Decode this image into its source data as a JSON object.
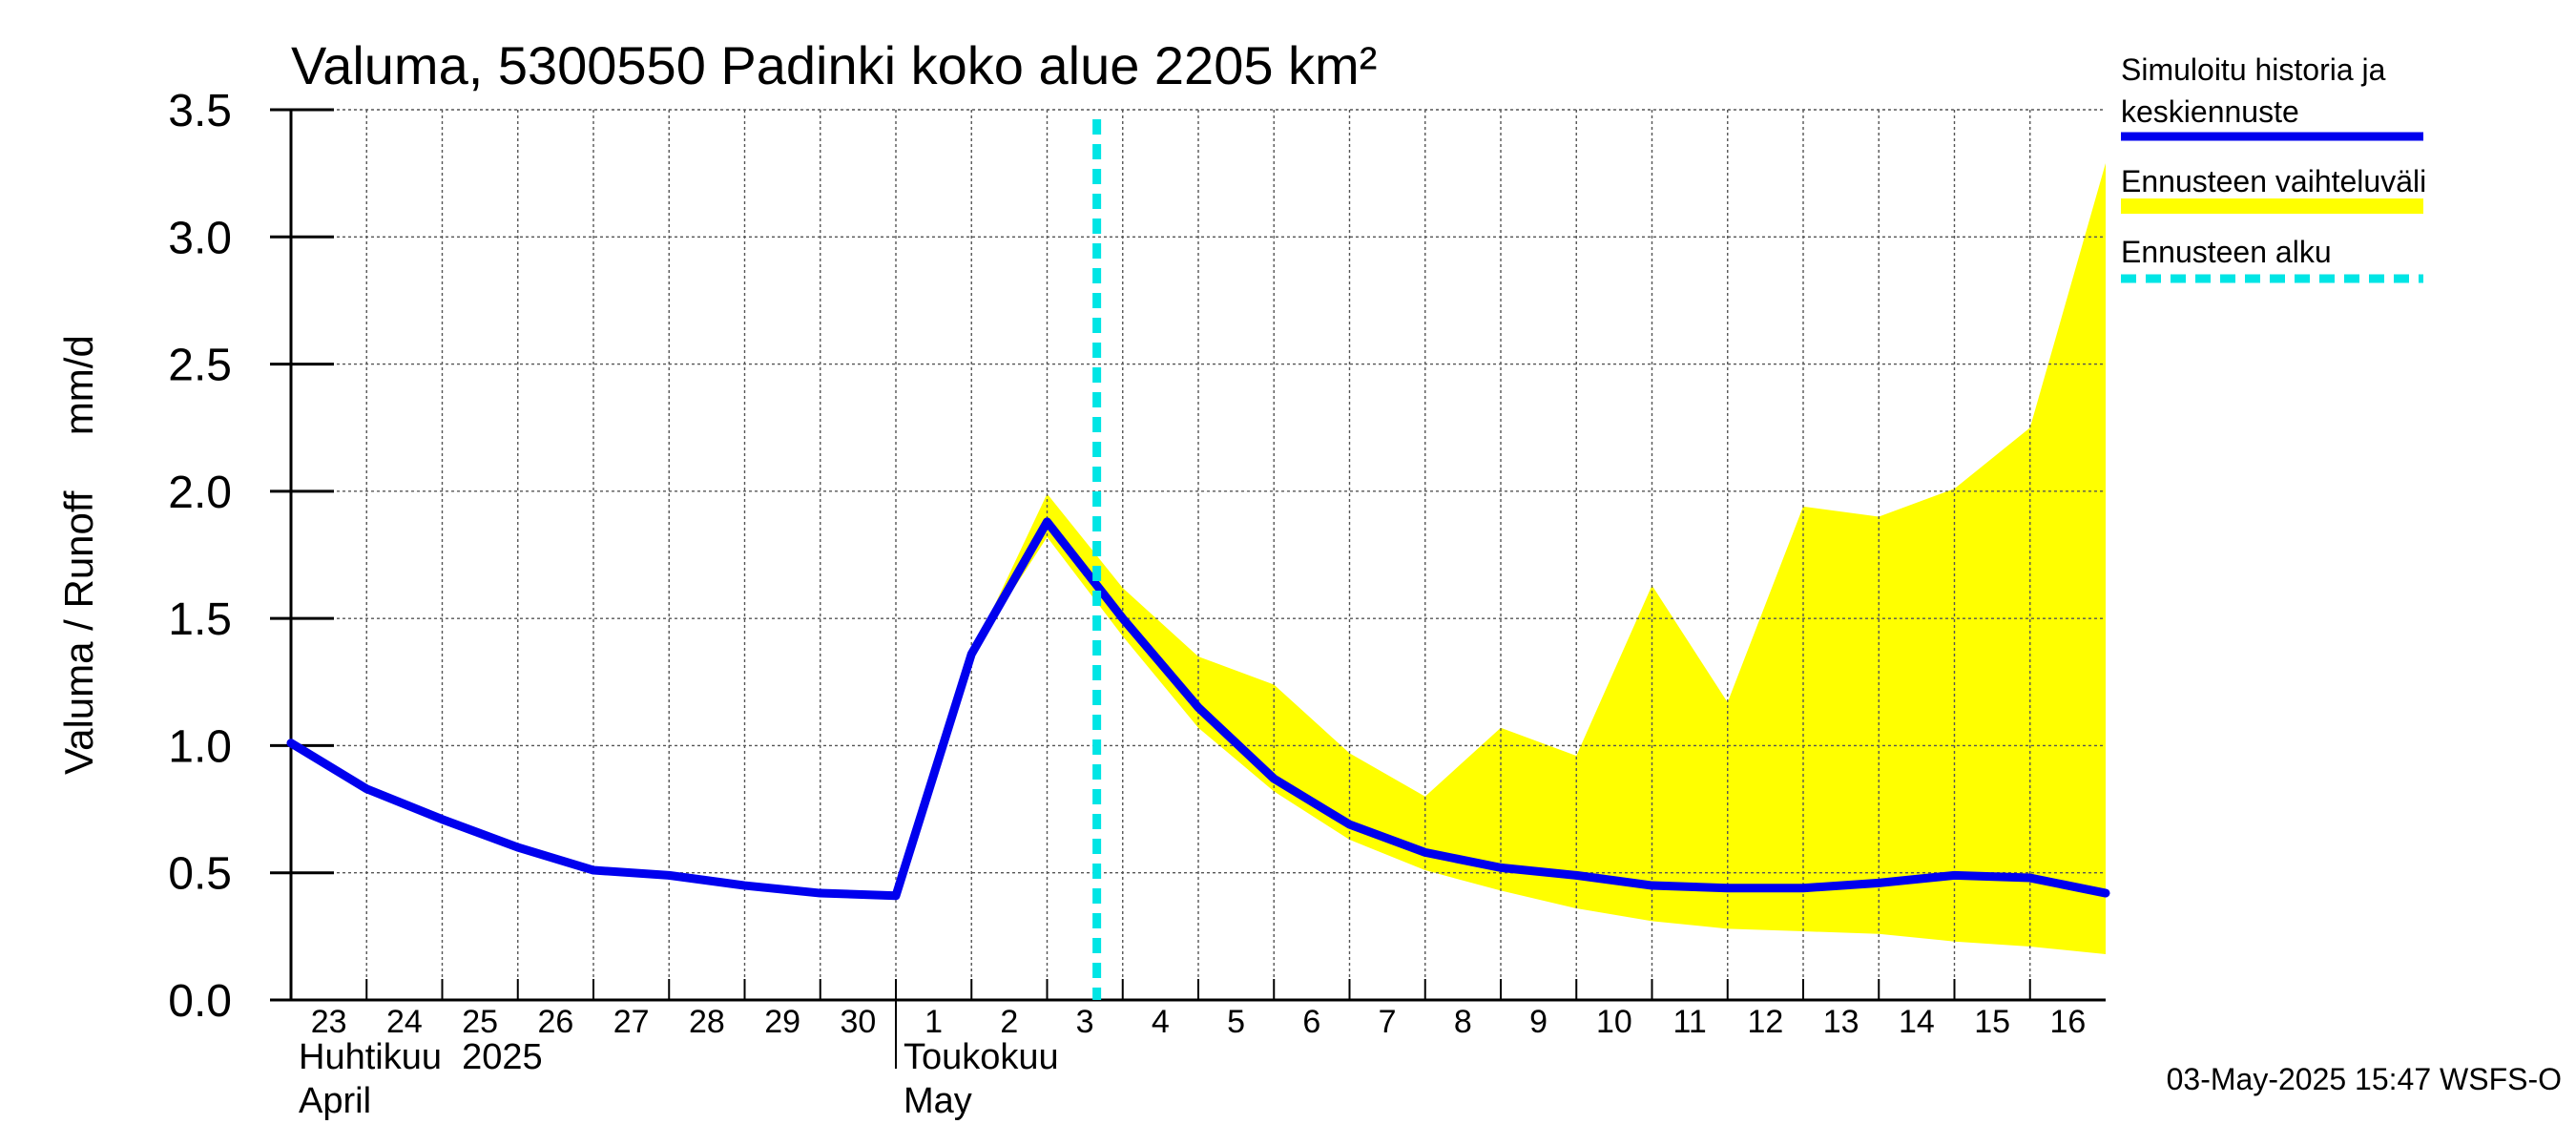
{
  "chart_data": {
    "type": "line",
    "title": "Valuma, 5300550 Padinki koko alue 2205 km²",
    "ylabel": "Valuma / Runoff     mm/d",
    "ylim": [
      0,
      3.5
    ],
    "y_ticks": [
      "0.0",
      "0.5",
      "1.0",
      "1.5",
      "2.0",
      "2.5",
      "3.0",
      "3.5"
    ],
    "y_tick_values": [
      0,
      0.5,
      1.0,
      1.5,
      2.0,
      2.5,
      3.0,
      3.5
    ],
    "x_ticks": [
      "23",
      "24",
      "25",
      "26",
      "27",
      "28",
      "29",
      "30",
      "1",
      "2",
      "3",
      "4",
      "5",
      "6",
      "7",
      "8",
      "9",
      "10",
      "11",
      "12",
      "13",
      "14",
      "15",
      "16"
    ],
    "x_range": [
      "2025-04-23",
      "2025-05-17"
    ],
    "month_labels": [
      {
        "line1": "Huhtikuu  2025",
        "line2": "April",
        "date": "2025-04-23"
      },
      {
        "line1": "Toukokuu",
        "line2": "May",
        "date": "2025-05-01"
      }
    ],
    "grid": true,
    "legend_position": "right",
    "series": [
      {
        "name": "Simuloitu historia ja keskiennuste",
        "color": "#0000ee",
        "points": [
          [
            "2025-04-23",
            1.01
          ],
          [
            "2025-04-24",
            0.83
          ],
          [
            "2025-04-25",
            0.71
          ],
          [
            "2025-04-26",
            0.6
          ],
          [
            "2025-04-27",
            0.51
          ],
          [
            "2025-04-28",
            0.49
          ],
          [
            "2025-04-29",
            0.45
          ],
          [
            "2025-04-30",
            0.42
          ],
          [
            "2025-05-01",
            0.41
          ],
          [
            "2025-05-02",
            1.36
          ],
          [
            "2025-05-03",
            1.88
          ],
          [
            "2025-05-04",
            1.5
          ],
          [
            "2025-05-05",
            1.15
          ],
          [
            "2025-05-06",
            0.87
          ],
          [
            "2025-05-07",
            0.69
          ],
          [
            "2025-05-08",
            0.58
          ],
          [
            "2025-05-09",
            0.52
          ],
          [
            "2025-05-10",
            0.49
          ],
          [
            "2025-05-11",
            0.45
          ],
          [
            "2025-05-12",
            0.44
          ],
          [
            "2025-05-13",
            0.44
          ],
          [
            "2025-05-14",
            0.46
          ],
          [
            "2025-05-15",
            0.49
          ],
          [
            "2025-05-16",
            0.48
          ],
          [
            "2025-05-17",
            0.42
          ]
        ]
      },
      {
        "name": "Ennusteen vaihteluväli",
        "color": "#ffff00",
        "band": [
          [
            "2025-05-02",
            1.36,
            1.36
          ],
          [
            "2025-05-03",
            1.82,
            1.99
          ],
          [
            "2025-05-04",
            1.43,
            1.62
          ],
          [
            "2025-05-05",
            1.07,
            1.35
          ],
          [
            "2025-05-06",
            0.82,
            1.24
          ],
          [
            "2025-05-07",
            0.63,
            0.97
          ],
          [
            "2025-05-08",
            0.51,
            0.8
          ],
          [
            "2025-05-09",
            0.43,
            1.07
          ],
          [
            "2025-05-10",
            0.36,
            0.96
          ],
          [
            "2025-05-11",
            0.31,
            1.63
          ],
          [
            "2025-05-12",
            0.28,
            1.17
          ],
          [
            "2025-05-13",
            0.27,
            1.94
          ],
          [
            "2025-05-14",
            0.26,
            1.9
          ],
          [
            "2025-05-15",
            0.23,
            2.01
          ],
          [
            "2025-05-16",
            0.21,
            2.25
          ],
          [
            "2025-05-17",
            0.18,
            3.29
          ]
        ]
      },
      {
        "name": "Ennusteen alku",
        "color": "#00e5e5",
        "x": "2025-05-03 15:47"
      }
    ],
    "legend": [
      {
        "line1": "Simuloitu historia ja",
        "line2": "keskiennuste",
        "style": "solid",
        "color": "#0000ee"
      },
      {
        "line1": "Ennusteen vaihteluväli",
        "line2": "",
        "style": "band",
        "color": "#ffff00"
      },
      {
        "line1": "Ennusteen alku",
        "line2": "",
        "style": "dashed",
        "color": "#00e5e5"
      }
    ],
    "timestamp": "03-May-2025 15:47 WSFS-O"
  }
}
